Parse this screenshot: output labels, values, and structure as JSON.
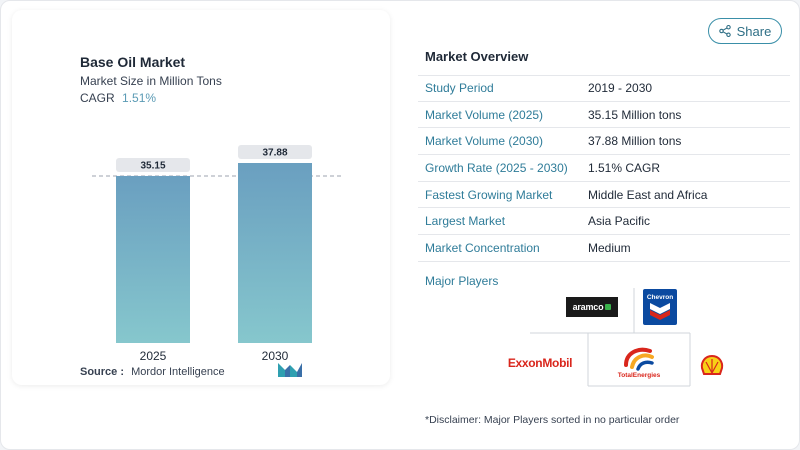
{
  "chart": {
    "title": "Base Oil Market",
    "subtitle": "Market Size in Million Tons",
    "cagr_label": "CAGR",
    "cagr_value": "1.51%",
    "source_label": "Source :",
    "source_value": "Mordor Intelligence"
  },
  "chart_data": {
    "type": "bar",
    "categories": [
      "2025",
      "2030"
    ],
    "values": [
      35.15,
      37.88
    ],
    "value_labels": [
      "35.15",
      "37.88"
    ],
    "title": "Base Oil Market",
    "subtitle": "Market Size in Million Tons",
    "xlabel": "",
    "ylabel": "",
    "ylim": [
      0,
      37.88
    ],
    "grid": false,
    "reference_line_value": 35.15,
    "colors": {
      "bar_top": "#6a9fc0",
      "bar_bottom": "#86c7cd",
      "label_bg": "#e5e7eb"
    }
  },
  "share": {
    "label": "Share",
    "icon": "share-icon"
  },
  "overview": {
    "title": "Market Overview",
    "rows": [
      {
        "label": "Study Period",
        "value": "2019 - 2030"
      },
      {
        "label": "Market Volume (2025)",
        "value": "35.15 Million tons"
      },
      {
        "label": "Market Volume (2030)",
        "value": "37.88 Million tons"
      },
      {
        "label": "Growth Rate (2025 - 2030)",
        "value": "1.51% CAGR"
      },
      {
        "label": "Fastest Growing Market",
        "value": "Middle East and Africa"
      },
      {
        "label": "Largest Market",
        "value": "Asia Pacific"
      },
      {
        "label": "Market Concentration",
        "value": "Medium"
      }
    ]
  },
  "players": {
    "title": "Major Players",
    "logos": {
      "aramco": "aramco",
      "chevron": "Chevron",
      "exxon": "ExxonMobil",
      "total": "TotalEnergies",
      "shell": "shell-logo"
    }
  },
  "disclaimer": "*Disclaimer: Major Players sorted in no particular order",
  "colors": {
    "accent": "#2f7c99",
    "brand": "#3a8fa8"
  }
}
